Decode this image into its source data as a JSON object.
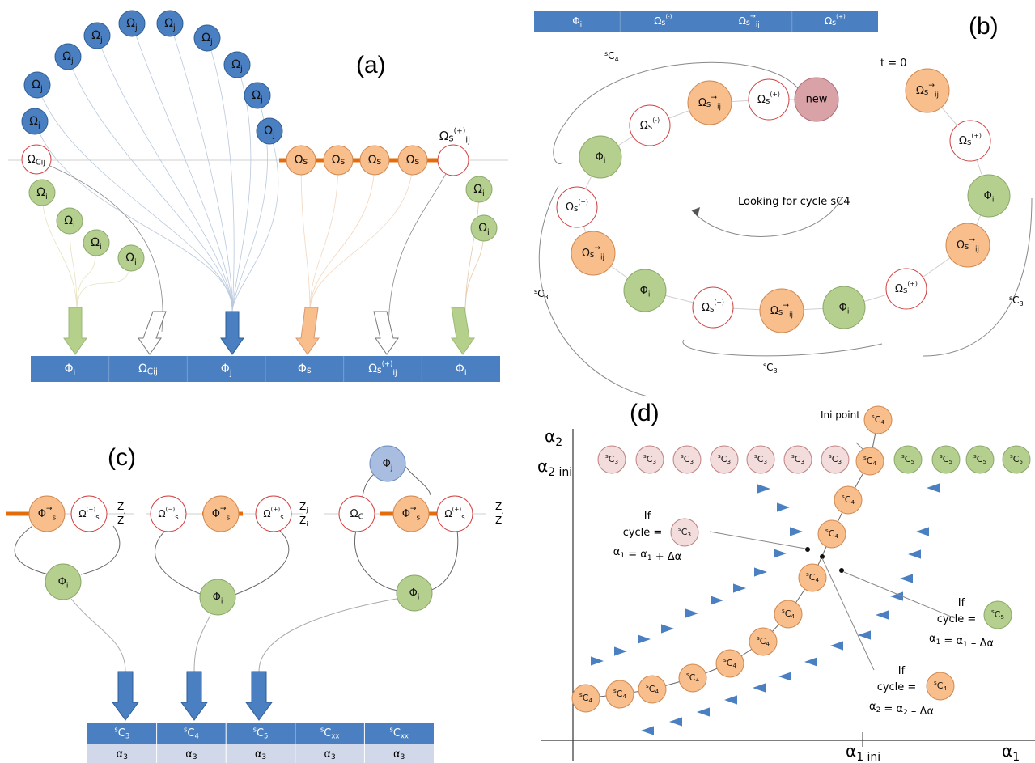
{
  "panel_labels": {
    "a": "(a)",
    "b": "(b)",
    "c": "(c)",
    "d": "(d)"
  },
  "colors": {
    "blue": "#4a7fc1",
    "blue_dark": "#2e5e95",
    "orange": "#f8be8c",
    "orange_line": "#e46c0a",
    "green": "#b5cf8e",
    "pink": "#d8a2a7",
    "light_pink": "#f2dcdc",
    "red_outline": "#d04040",
    "table_blue": "#4a7fc1",
    "table_light": "#d0d8ea",
    "arrow_green": "#b5d08b",
    "arrow_orange": "#f8be8c"
  },
  "panel_a": {
    "arc_labels": [
      "Ωj",
      "Ωj",
      "Ωj",
      "Ωj",
      "Ωj",
      "Ωj",
      "Ωj",
      "Ωj",
      "Ωj",
      "Ωj"
    ],
    "omega_c": "ΩCij",
    "omega_i": [
      "Ωi",
      "Ωi",
      "Ωi",
      "Ωi"
    ],
    "omega_s": [
      "Ωs",
      "Ωs",
      "Ωs",
      "Ωs"
    ],
    "omega_s_plus": "Ωs(+)ij",
    "right_i": [
      "Ωi",
      "Ωi"
    ],
    "table": [
      "Φi",
      "ΩCij",
      "Φj",
      "Φs",
      "Ωs(+)ij",
      "Φi"
    ]
  },
  "panel_b": {
    "table": [
      "Φi",
      "Ωs(-)",
      "Ωs→ij",
      "Ωs(+)"
    ],
    "t0": "t = 0",
    "looking": "Looking for cycle sC4",
    "new": "new",
    "labels": {
      "sC4": "sC4",
      "sC3": "sC3"
    }
  },
  "panel_c": {
    "table_top": [
      "sC3",
      "sC4",
      "sC5",
      "sCxx",
      "sCxx"
    ],
    "table_bottom": [
      "α3",
      "α3",
      "α3",
      "α3",
      "α3"
    ],
    "zj": "Zj",
    "zi": "Zi"
  },
  "panel_d": {
    "y_axis": "α2",
    "y_ini": "α2 ini",
    "x_axis": "α1",
    "x_ini": "α1 ini",
    "ini_point": "Ini point",
    "row": [
      "sC3",
      "sC3",
      "sC3",
      "sC3",
      "sC3",
      "sC3",
      "sC3",
      "sC4",
      "sC5",
      "sC5",
      "sC5",
      "sC5"
    ],
    "if_c3": {
      "line1": "If",
      "line2": "cycle =",
      "badge": "sC3",
      "eq": "α1 = α1 + Δα"
    },
    "if_c5": {
      "line1": "If",
      "line2": "cycle =",
      "badge": "sC5",
      "eq": "α1 = α1 – Δα"
    },
    "if_c4": {
      "line1": "If",
      "line2": "cycle =",
      "badge": "sC4",
      "eq": "α2 = α2 – Δα"
    }
  }
}
